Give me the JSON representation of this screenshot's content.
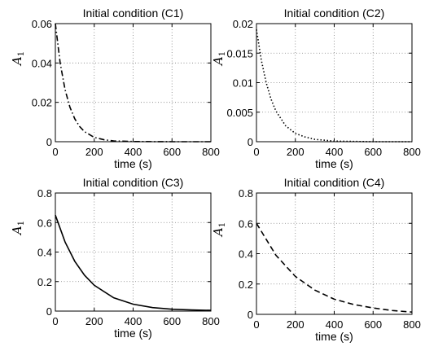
{
  "chart_data": [
    {
      "type": "line",
      "title": "Initial condition (C1)",
      "xlabel": "time (s)",
      "ylabel": "A",
      "ylabel_subscript": "1",
      "xlim": [
        0,
        800
      ],
      "ylim": [
        0,
        0.06
      ],
      "xticks": [
        "0",
        "200",
        "400",
        "600",
        "800"
      ],
      "yticks": [
        "0",
        "0.02",
        "0.04",
        "0.06"
      ],
      "grid": true,
      "line_style": "dash-dot",
      "series": [
        {
          "x": [
            0,
            25,
            50,
            75,
            100,
            125,
            150,
            200,
            250,
            300,
            400,
            600,
            800
          ],
          "values": [
            0.06,
            0.0398,
            0.0264,
            0.0175,
            0.0116,
            0.0077,
            0.0051,
            0.0022,
            0.001,
            0.0004,
            0.0001,
            0.0,
            0.0
          ]
        }
      ]
    },
    {
      "type": "line",
      "title": "Initial condition (C2)",
      "xlabel": "time (s)",
      "ylabel": "A",
      "ylabel_subscript": "1",
      "xlim": [
        0,
        800
      ],
      "ylim": [
        0,
        0.02
      ],
      "xticks": [
        "0",
        "200",
        "400",
        "600",
        "800"
      ],
      "yticks": [
        "0",
        "0.005",
        "0.01",
        "0.015",
        "0.02"
      ],
      "grid": true,
      "line_style": "dotted",
      "series": [
        {
          "x": [
            0,
            25,
            50,
            75,
            100,
            150,
            200,
            250,
            300,
            400,
            600,
            800
          ],
          "values": [
            0.019,
            0.0138,
            0.01,
            0.0072,
            0.0052,
            0.0027,
            0.0014,
            0.0008,
            0.0004,
            0.0001,
            0.0,
            0.0
          ]
        }
      ]
    },
    {
      "type": "line",
      "title": "Initial condition (C3)",
      "xlabel": "time (s)",
      "ylabel": "A",
      "ylabel_subscript": "1",
      "xlim": [
        0,
        800
      ],
      "ylim": [
        0,
        0.8
      ],
      "xticks": [
        "0",
        "200",
        "400",
        "600",
        "800"
      ],
      "yticks": [
        "0",
        "0.2",
        "0.4",
        "0.6",
        "0.8"
      ],
      "grid": true,
      "line_style": "solid",
      "series": [
        {
          "x": [
            0,
            50,
            100,
            150,
            200,
            300,
            400,
            500,
            600,
            700,
            800
          ],
          "values": [
            0.65,
            0.468,
            0.337,
            0.243,
            0.175,
            0.09,
            0.047,
            0.024,
            0.013,
            0.008,
            0.005
          ]
        }
      ]
    },
    {
      "type": "line",
      "title": "Initial condition (C4)",
      "xlabel": "time (s)",
      "ylabel": "A",
      "ylabel_subscript": "1",
      "xlim": [
        0,
        800
      ],
      "ylim": [
        0,
        0.8
      ],
      "xticks": [
        "0",
        "200",
        "400",
        "600",
        "800"
      ],
      "yticks": [
        "0",
        "0.2",
        "0.4",
        "0.6",
        "0.8"
      ],
      "grid": true,
      "line_style": "dashed",
      "series": [
        {
          "x": [
            0,
            100,
            200,
            300,
            400,
            500,
            600,
            700,
            800
          ],
          "values": [
            0.6,
            0.39,
            0.25,
            0.16,
            0.1,
            0.065,
            0.042,
            0.025,
            0.015
          ]
        }
      ]
    }
  ]
}
